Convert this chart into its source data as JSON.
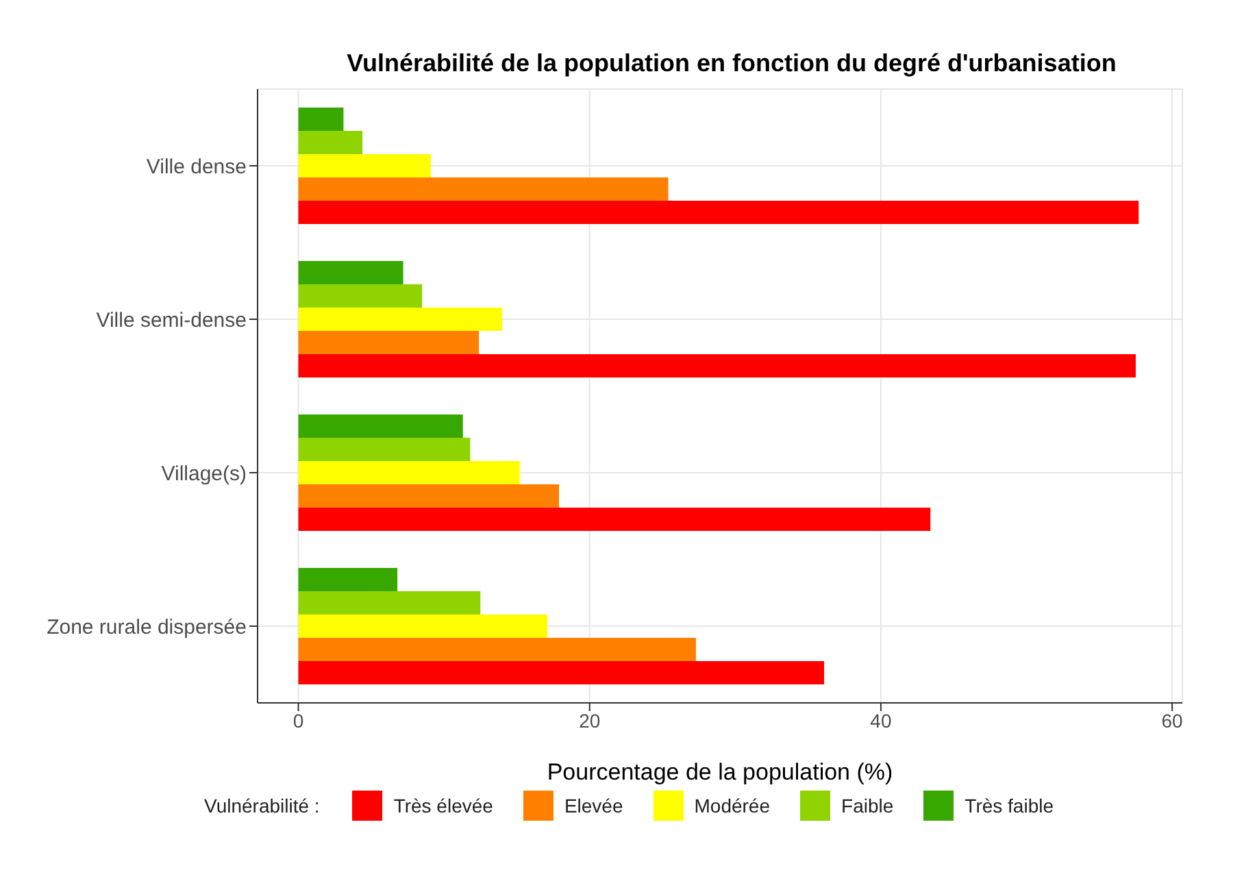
{
  "chart_data": {
    "type": "bar",
    "orientation": "horizontal",
    "title": "Vulnérabilité de la population en fonction du degré d'urbanisation",
    "xlabel": "Pourcentage de la population (%)",
    "legend_title": "Vulnérabilité :",
    "categories": [
      "Ville dense",
      "Ville semi-dense",
      "Village(s)",
      "Zone rurale dispersée"
    ],
    "series": [
      {
        "name": "Très élevée",
        "color": "#ff0000",
        "values": [
          57.7,
          57.5,
          43.4,
          36.1
        ]
      },
      {
        "name": "Elevée",
        "color": "#ff8000",
        "values": [
          25.4,
          12.4,
          17.9,
          27.3
        ]
      },
      {
        "name": "Modérée",
        "color": "#ffff00",
        "values": [
          9.1,
          14.0,
          15.2,
          17.1
        ]
      },
      {
        "name": "Faible",
        "color": "#8fd400",
        "values": [
          4.4,
          8.5,
          11.8,
          12.5
        ]
      },
      {
        "name": "Très faible",
        "color": "#38a800",
        "values": [
          3.1,
          7.2,
          11.3,
          6.8
        ]
      }
    ],
    "xlim": [
      -2.8,
      60.7
    ],
    "xticks": [
      0,
      20,
      40,
      60
    ],
    "grid": true,
    "legend": "bottom"
  }
}
